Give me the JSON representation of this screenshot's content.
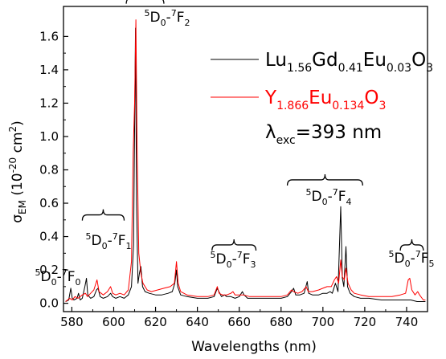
{
  "chart_data": {
    "type": "line",
    "xlabel": "Wavelengths (nm)",
    "ylabel": {
      "main": "σ",
      "sub": "EM",
      "units": "(10",
      "exp": "-20",
      "units_end": " cm",
      "units_exp": "2",
      "close": ")"
    },
    "xlim": [
      576,
      750
    ],
    "ylim": [
      -0.05,
      1.78
    ],
    "x_ticks": [
      580,
      600,
      620,
      640,
      660,
      680,
      700,
      720,
      740
    ],
    "y_ticks": [
      0.0,
      0.2,
      0.4,
      0.6,
      0.8,
      1.0,
      1.2,
      1.4,
      1.6
    ],
    "y_tick_labels": [
      "0.0",
      "0.2",
      "0.4",
      "0.6",
      "0.8",
      "1.0",
      "1.2",
      "1.4",
      "1.6"
    ],
    "grid": false,
    "legend_position": "top-right",
    "series": [
      {
        "name": {
          "parts": [
            [
              "Lu",
              ""
            ],
            [
              "1.56",
              "sub"
            ],
            [
              "Gd",
              ""
            ],
            [
              "0.41",
              "sub"
            ],
            [
              "Eu",
              ""
            ],
            [
              "0.03",
              "sub"
            ],
            [
              "O",
              ""
            ],
            [
              "3",
              "sub"
            ]
          ]
        },
        "color": "#000000",
        "points": [
          [
            577,
            0.01
          ],
          [
            578.5,
            0.02
          ],
          [
            579.5,
            0.09
          ],
          [
            580.2,
            0.03
          ],
          [
            581,
            0.02
          ],
          [
            582.5,
            0.03
          ],
          [
            583.2,
            0.06
          ],
          [
            584,
            0.02
          ],
          [
            585,
            0.03
          ],
          [
            586.2,
            0.1
          ],
          [
            587,
            0.15
          ],
          [
            587.6,
            0.05
          ],
          [
            589,
            0.03
          ],
          [
            590.5,
            0.04
          ],
          [
            591.8,
            0.08
          ],
          [
            592.5,
            0.09
          ],
          [
            593.5,
            0.04
          ],
          [
            595,
            0.03
          ],
          [
            597,
            0.04
          ],
          [
            598.5,
            0.06
          ],
          [
            599.5,
            0.04
          ],
          [
            601,
            0.03
          ],
          [
            603,
            0.04
          ],
          [
            605,
            0.03
          ],
          [
            607,
            0.05
          ],
          [
            608.5,
            0.1
          ],
          [
            609.5,
            0.35
          ],
          [
            610.4,
            1.65
          ],
          [
            610.9,
            0.6
          ],
          [
            611.6,
            0.12
          ],
          [
            612.3,
            0.18
          ],
          [
            613,
            0.22
          ],
          [
            613.8,
            0.1
          ],
          [
            615,
            0.07
          ],
          [
            617,
            0.06
          ],
          [
            620,
            0.05
          ],
          [
            623,
            0.05
          ],
          [
            626,
            0.06
          ],
          [
            628,
            0.07
          ],
          [
            629.2,
            0.12
          ],
          [
            630,
            0.2
          ],
          [
            630.6,
            0.1
          ],
          [
            632,
            0.05
          ],
          [
            635,
            0.04
          ],
          [
            640,
            0.03
          ],
          [
            645,
            0.03
          ],
          [
            648,
            0.04
          ],
          [
            649.5,
            0.09
          ],
          [
            650.3,
            0.07
          ],
          [
            651.5,
            0.04
          ],
          [
            653,
            0.05
          ],
          [
            654,
            0.04
          ],
          [
            656,
            0.04
          ],
          [
            658,
            0.03
          ],
          [
            660,
            0.04
          ],
          [
            661.5,
            0.07
          ],
          [
            662.3,
            0.05
          ],
          [
            664,
            0.03
          ],
          [
            668,
            0.03
          ],
          [
            672,
            0.03
          ],
          [
            676,
            0.03
          ],
          [
            680,
            0.03
          ],
          [
            683,
            0.04
          ],
          [
            685,
            0.07
          ],
          [
            686,
            0.09
          ],
          [
            687,
            0.05
          ],
          [
            689,
            0.05
          ],
          [
            691,
            0.06
          ],
          [
            692.5,
            0.13
          ],
          [
            693.2,
            0.06
          ],
          [
            695,
            0.05
          ],
          [
            698,
            0.05
          ],
          [
            700,
            0.06
          ],
          [
            702,
            0.06
          ],
          [
            703.5,
            0.07
          ],
          [
            704.5,
            0.06
          ],
          [
            706,
            0.12
          ],
          [
            707.2,
            0.07
          ],
          [
            708.5,
            0.58
          ],
          [
            709.3,
            0.15
          ],
          [
            710,
            0.1
          ],
          [
            711,
            0.34
          ],
          [
            711.8,
            0.1
          ],
          [
            713,
            0.06
          ],
          [
            715,
            0.04
          ],
          [
            718,
            0.03
          ],
          [
            722,
            0.03
          ],
          [
            728,
            0.02
          ],
          [
            733,
            0.02
          ],
          [
            737,
            0.02
          ],
          [
            740,
            0.02
          ],
          [
            742,
            0.02
          ],
          [
            745,
            0.01
          ],
          [
            749,
            0.01
          ]
        ]
      },
      {
        "name": {
          "parts": [
            [
              "Y",
              ""
            ],
            [
              "1.866",
              "sub"
            ],
            [
              "Eu",
              ""
            ],
            [
              "0.134",
              "sub"
            ],
            [
              "O",
              ""
            ],
            [
              "3",
              "sub"
            ]
          ]
        },
        "color": "#ff0000",
        "points": [
          [
            577,
            0.01
          ],
          [
            579,
            0.03
          ],
          [
            580.2,
            0.02
          ],
          [
            581.5,
            0.04
          ],
          [
            583,
            0.03
          ],
          [
            585,
            0.05
          ],
          [
            586.5,
            0.06
          ],
          [
            587.5,
            0.04
          ],
          [
            589,
            0.06
          ],
          [
            590.5,
            0.08
          ],
          [
            592,
            0.14
          ],
          [
            593,
            0.07
          ],
          [
            595,
            0.05
          ],
          [
            597,
            0.07
          ],
          [
            598.5,
            0.1
          ],
          [
            599.5,
            0.06
          ],
          [
            601,
            0.05
          ],
          [
            603,
            0.06
          ],
          [
            605,
            0.05
          ],
          [
            607,
            0.08
          ],
          [
            608.5,
            0.25
          ],
          [
            609.3,
            0.9
          ],
          [
            610,
            1.2
          ],
          [
            610.6,
            1.7
          ],
          [
            611.2,
            0.95
          ],
          [
            612,
            0.3
          ],
          [
            613,
            0.18
          ],
          [
            614,
            0.12
          ],
          [
            616,
            0.08
          ],
          [
            618,
            0.07
          ],
          [
            621,
            0.08
          ],
          [
            624,
            0.09
          ],
          [
            627,
            0.1
          ],
          [
            629,
            0.12
          ],
          [
            630,
            0.25
          ],
          [
            630.8,
            0.12
          ],
          [
            632,
            0.07
          ],
          [
            635,
            0.05
          ],
          [
            640,
            0.04
          ],
          [
            645,
            0.04
          ],
          [
            648,
            0.05
          ],
          [
            649.5,
            0.1
          ],
          [
            650.4,
            0.06
          ],
          [
            652,
            0.05
          ],
          [
            654,
            0.05
          ],
          [
            656,
            0.06
          ],
          [
            657,
            0.07
          ],
          [
            658,
            0.05
          ],
          [
            660,
            0.05
          ],
          [
            662,
            0.05
          ],
          [
            665,
            0.04
          ],
          [
            670,
            0.04
          ],
          [
            675,
            0.04
          ],
          [
            680,
            0.04
          ],
          [
            683,
            0.05
          ],
          [
            685,
            0.08
          ],
          [
            686,
            0.07
          ],
          [
            688,
            0.06
          ],
          [
            690,
            0.07
          ],
          [
            692,
            0.1
          ],
          [
            693,
            0.07
          ],
          [
            695,
            0.07
          ],
          [
            698,
            0.08
          ],
          [
            700,
            0.09
          ],
          [
            702,
            0.1
          ],
          [
            704,
            0.1
          ],
          [
            705.5,
            0.14
          ],
          [
            706.5,
            0.16
          ],
          [
            707.5,
            0.12
          ],
          [
            708.5,
            0.26
          ],
          [
            709.3,
            0.16
          ],
          [
            710.2,
            0.14
          ],
          [
            711,
            0.21
          ],
          [
            712,
            0.12
          ],
          [
            713.5,
            0.08
          ],
          [
            715,
            0.06
          ],
          [
            718,
            0.05
          ],
          [
            722,
            0.04
          ],
          [
            728,
            0.04
          ],
          [
            733,
            0.04
          ],
          [
            737,
            0.05
          ],
          [
            739.5,
            0.06
          ],
          [
            740.8,
            0.14
          ],
          [
            741.5,
            0.15
          ],
          [
            742.5,
            0.08
          ],
          [
            744,
            0.05
          ],
          [
            745.3,
            0.07
          ],
          [
            746.2,
            0.05
          ],
          [
            748,
            0.02
          ],
          [
            749,
            0.02
          ]
        ]
      }
    ],
    "annotations": [
      {
        "id": "f2",
        "level": "5",
        "term": "D",
        "sub": "0",
        "dash": "-",
        "level2": "7",
        "term2": "F",
        "sub2": "2",
        "bracket": [
          606,
          624
        ],
        "bracket_y": 1.83
      },
      {
        "id": "f1",
        "level": "5",
        "term": "D",
        "sub": "0",
        "dash": "-",
        "level2": "7",
        "term2": "F",
        "sub2": "1",
        "bracket": [
          585,
          605
        ],
        "bracket_y": 0.53
      },
      {
        "id": "f0",
        "level": "5",
        "term": "D",
        "sub": "0",
        "dash": "-",
        "level2": "7",
        "term2": "F",
        "sub2": "0",
        "bracket": null,
        "bracket_y": null
      },
      {
        "id": "f3",
        "level": "5",
        "term": "D",
        "sub": "0",
        "dash": "-",
        "level2": "7",
        "term2": "F",
        "sub2": "3",
        "bracket": [
          647,
          668
        ],
        "bracket_y": 0.35
      },
      {
        "id": "f4",
        "level": "5",
        "term": "D",
        "sub": "0",
        "dash": "-",
        "level2": "7",
        "term2": "F",
        "sub2": "4",
        "bracket": [
          683,
          719
        ],
        "bracket_y": 0.74
      },
      {
        "id": "f5",
        "level": "5",
        "term": "D",
        "sub": "0",
        "dash": "-",
        "level2": "7",
        "term2": "F",
        "sub2": "5",
        "bracket": [
          737,
          748
        ],
        "bracket_y": 0.35
      }
    ],
    "excitation": {
      "symbol": "λ",
      "sub": "exc",
      "text": "=393 nm"
    }
  }
}
